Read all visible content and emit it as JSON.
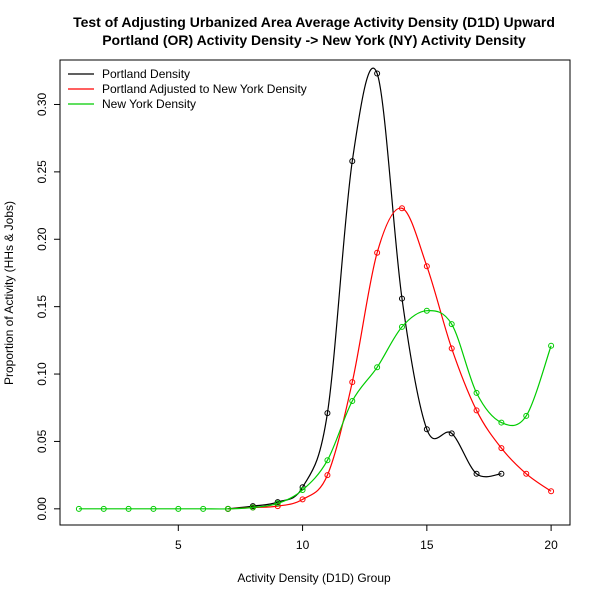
{
  "chart_data": {
    "type": "line",
    "title": "Test of Adjusting Urbanized Area Average Activity Density (D1D) Upward",
    "subtitle": "Portland (OR) Activity Density -> New York (NY) Activity Density",
    "xlabel": "Activity Density (D1D) Group",
    "ylabel": "Proportion of Activity (HHs & Jobs)",
    "xlim": [
      0.24,
      20.76
    ],
    "ylim": [
      -0.012,
      0.333
    ],
    "x_ticks": [
      5,
      10,
      15,
      20
    ],
    "y_ticks": [
      0.0,
      0.05,
      0.1,
      0.15,
      0.2,
      0.25,
      0.3
    ],
    "y_tick_labels": [
      "0.00",
      "0.05",
      "0.10",
      "0.15",
      "0.20",
      "0.25",
      "0.30"
    ],
    "grid": false,
    "legend_position": "top-left",
    "series": [
      {
        "name": "Portland Density",
        "color": "#000000",
        "x": [
          7,
          8,
          9,
          10,
          11,
          12,
          13,
          14,
          15,
          16,
          17,
          18
        ],
        "y": [
          0.0,
          0.002,
          0.005,
          0.016,
          0.071,
          0.258,
          0.323,
          0.156,
          0.059,
          0.056,
          0.026,
          0.026
        ]
      },
      {
        "name": "Portland Adjusted to New York Density",
        "color": "#ff0000",
        "x": [
          7,
          8,
          9,
          10,
          11,
          12,
          13,
          14,
          15,
          16,
          17,
          18,
          19,
          20
        ],
        "y": [
          0.0,
          0.001,
          0.002,
          0.007,
          0.025,
          0.094,
          0.19,
          0.223,
          0.18,
          0.119,
          0.073,
          0.045,
          0.026,
          0.013
        ]
      },
      {
        "name": "New York Density",
        "color": "#00cc00",
        "x": [
          1,
          2,
          3,
          4,
          5,
          6,
          7,
          8,
          9,
          10,
          11,
          12,
          13,
          14,
          15,
          16,
          17,
          18,
          19,
          20
        ],
        "y": [
          0.0,
          0.0,
          0.0,
          0.0,
          0.0,
          0.0,
          0.0,
          0.001,
          0.004,
          0.014,
          0.036,
          0.08,
          0.105,
          0.135,
          0.147,
          0.137,
          0.086,
          0.064,
          0.069,
          0.121
        ]
      }
    ]
  }
}
